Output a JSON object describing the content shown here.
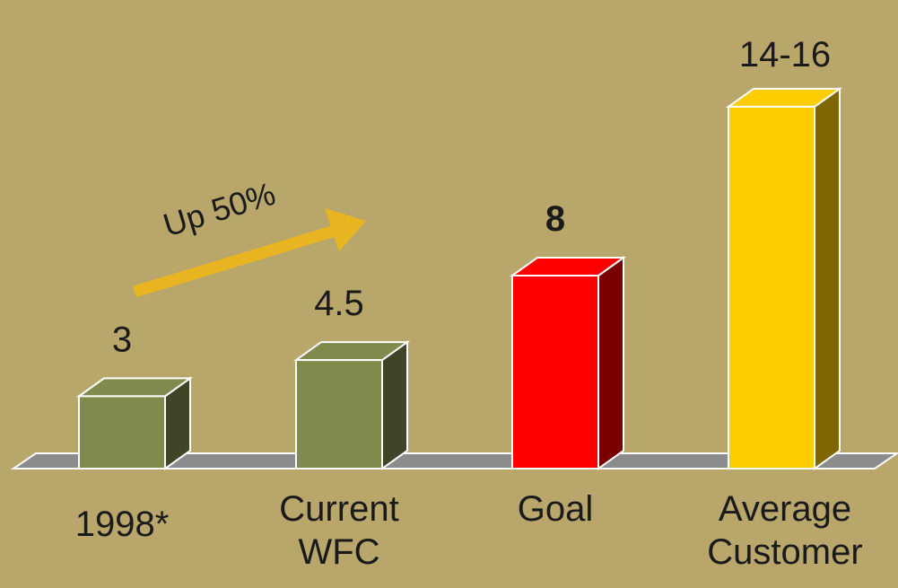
{
  "chart_data": {
    "type": "bar3d",
    "categories": [
      "1998*",
      "Current WFC",
      "Goal",
      "Average Customer"
    ],
    "values": [
      3,
      4.5,
      8,
      15
    ],
    "value_labels": [
      "3",
      "4.5",
      "8",
      "14-16"
    ],
    "colors": [
      "#7f8a4c",
      "#7f8a4c",
      "#ff0000",
      "#ffcc00"
    ],
    "side_colors": [
      "#3f4526",
      "#3f4526",
      "#7a0000",
      "#806600"
    ],
    "ylim": [
      0,
      16
    ],
    "annotation": "Up 50%"
  }
}
